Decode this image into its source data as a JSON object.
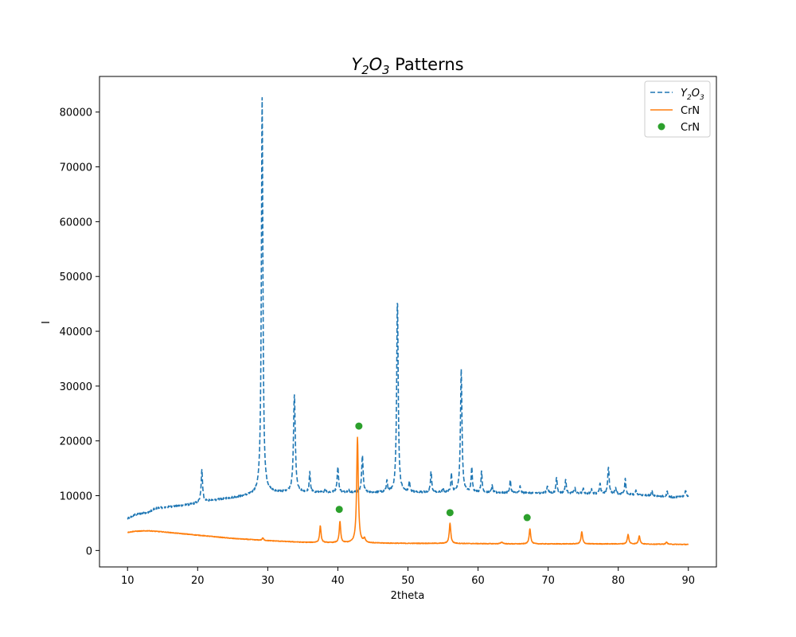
{
  "chart_data": {
    "type": "line",
    "title": {
      "main": "Y",
      "sub1": "2",
      "mid": "O",
      "sub2": "3",
      "suffix": " Patterns"
    },
    "xlabel": "2theta",
    "ylabel": "I",
    "xlim": [
      6,
      94
    ],
    "ylim": [
      -3000,
      86500
    ],
    "xticks": [
      10,
      20,
      30,
      40,
      50,
      60,
      70,
      80,
      90
    ],
    "yticks": [
      0,
      10000,
      20000,
      30000,
      40000,
      50000,
      60000,
      70000,
      80000
    ],
    "legend": {
      "position": "top-right",
      "entries": [
        {
          "label_main": "Y",
          "label_sub1": "2",
          "label_mid": "O",
          "label_sub2": "3",
          "style": "dashed-line",
          "color": "#1f77b4"
        },
        {
          "label": "CrN",
          "style": "solid-line",
          "color": "#ff7f0e"
        },
        {
          "label": "CrN",
          "style": "marker",
          "color": "#2ca02c"
        }
      ]
    },
    "series": [
      {
        "name": "Y2O3",
        "color": "#1f77b4",
        "style": "dashed",
        "baseline": [
          [
            10,
            5800
          ],
          [
            11,
            6500
          ],
          [
            13,
            7000
          ],
          [
            14,
            7700
          ],
          [
            17,
            8100
          ],
          [
            19,
            8400
          ],
          [
            20,
            8700
          ],
          [
            21,
            9000
          ],
          [
            22,
            9100
          ],
          [
            24,
            9500
          ],
          [
            26,
            9800
          ],
          [
            28,
            10200
          ],
          [
            30,
            10600
          ],
          [
            35,
            10600
          ],
          [
            40,
            10600
          ],
          [
            45,
            10600
          ],
          [
            50,
            10600
          ],
          [
            55,
            10600
          ],
          [
            60,
            10600
          ],
          [
            65,
            10500
          ],
          [
            70,
            10500
          ],
          [
            75,
            10400
          ],
          [
            80,
            10300
          ],
          [
            85,
            10000
          ],
          [
            88,
            9700
          ],
          [
            90,
            9900
          ]
        ],
        "peaks": [
          [
            20.6,
            14800,
            0.12
          ],
          [
            29.2,
            82500,
            0.13
          ],
          [
            33.8,
            28500,
            0.15
          ],
          [
            36.0,
            14200,
            0.1
          ],
          [
            38.2,
            11300,
            0.1
          ],
          [
            40.0,
            15200,
            0.12
          ],
          [
            41.5,
            11200,
            0.1
          ],
          [
            43.5,
            17500,
            0.12
          ],
          [
            47.0,
            12600,
            0.1
          ],
          [
            48.5,
            45800,
            0.13
          ],
          [
            50.2,
            12500,
            0.1
          ],
          [
            53.3,
            14500,
            0.1
          ],
          [
            55.0,
            11200,
            0.1
          ],
          [
            56.2,
            13900,
            0.1
          ],
          [
            57.6,
            33000,
            0.13
          ],
          [
            59.1,
            15100,
            0.1
          ],
          [
            60.5,
            14400,
            0.1
          ],
          [
            62.0,
            11800,
            0.1
          ],
          [
            64.6,
            12800,
            0.1
          ],
          [
            66.0,
            11700,
            0.1
          ],
          [
            69.9,
            11800,
            0.1
          ],
          [
            71.2,
            13400,
            0.1
          ],
          [
            72.5,
            13000,
            0.1
          ],
          [
            73.8,
            11500,
            0.1
          ],
          [
            75.0,
            11300,
            0.1
          ],
          [
            76.2,
            11100,
            0.1
          ],
          [
            77.4,
            12200,
            0.1
          ],
          [
            78.6,
            15300,
            0.12
          ],
          [
            79.6,
            11500,
            0.1
          ],
          [
            81.0,
            13200,
            0.1
          ],
          [
            82.5,
            10900,
            0.1
          ],
          [
            84.8,
            10900,
            0.1
          ],
          [
            87.0,
            10800,
            0.1
          ],
          [
            89.6,
            11000,
            0.1
          ]
        ]
      },
      {
        "name": "CrN",
        "color": "#ff7f0e",
        "style": "solid",
        "baseline": [
          [
            10,
            3300
          ],
          [
            11,
            3500
          ],
          [
            13,
            3600
          ],
          [
            15,
            3400
          ],
          [
            20,
            2800
          ],
          [
            25,
            2200
          ],
          [
            30,
            1800
          ],
          [
            35,
            1500
          ],
          [
            40,
            1400
          ],
          [
            45,
            1350
          ],
          [
            50,
            1300
          ],
          [
            55,
            1300
          ],
          [
            60,
            1250
          ],
          [
            65,
            1200
          ],
          [
            70,
            1200
          ],
          [
            75,
            1200
          ],
          [
            80,
            1200
          ],
          [
            85,
            1150
          ],
          [
            90,
            1100
          ]
        ],
        "peaks": [
          [
            29.3,
            2300,
            0.12
          ],
          [
            37.5,
            4500,
            0.12
          ],
          [
            40.3,
            5300,
            0.12
          ],
          [
            42.8,
            20600,
            0.14
          ],
          [
            43.8,
            2100,
            0.15
          ],
          [
            56.0,
            5000,
            0.13
          ],
          [
            63.4,
            1500,
            0.2
          ],
          [
            67.4,
            4000,
            0.13
          ],
          [
            74.8,
            3400,
            0.13
          ],
          [
            81.4,
            2900,
            0.13
          ],
          [
            83.0,
            2700,
            0.13
          ],
          [
            86.9,
            1500,
            0.15
          ]
        ]
      }
    ],
    "markers": {
      "name": "CrN",
      "color": "#2ca02c",
      "points": [
        [
          40.2,
          7500
        ],
        [
          43.0,
          22700
        ],
        [
          56.0,
          6900
        ],
        [
          67.0,
          6000
        ]
      ]
    }
  }
}
